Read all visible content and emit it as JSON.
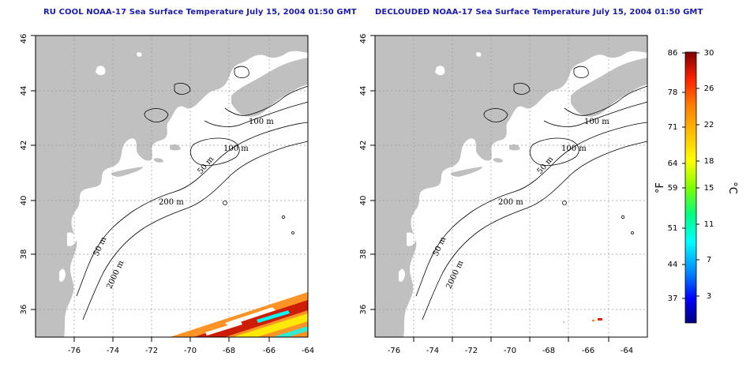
{
  "titles": {
    "left": "RU COOL NOAA-17 Sea Surface Temperature July 15, 2004 01:50 GMT",
    "right": "DECLOUDED NOAA-17 Sea Surface Temperature July 15, 2004 01:50 GMT"
  },
  "map": {
    "lon_range": [
      -77,
      -63
    ],
    "lat_range": [
      35,
      46
    ],
    "lon_ticks": [
      -76,
      -74,
      -72,
      -70,
      -68,
      -66,
      -64
    ],
    "lat_ticks": [
      36,
      38,
      40,
      42,
      44,
      46
    ],
    "grid": "dotted",
    "land_color": "#c0c0c0",
    "water_color": "#ffffff",
    "contour_labels": [
      "100 m",
      "100 m",
      "50 m",
      "200 m",
      "50 m",
      "2000 m"
    ]
  },
  "colorbar": {
    "fahrenheit_ticks": [
      "86",
      "78",
      "71",
      "64",
      "59",
      "51",
      "44",
      "37"
    ],
    "celsius_ticks": [
      "30",
      "26",
      "22",
      "18",
      "15",
      "11",
      "7",
      "3"
    ],
    "left_unit": "°F",
    "right_unit": "°C",
    "colors": [
      "#000080",
      "#0000ff",
      "#0080ff",
      "#00ffff",
      "#00ff80",
      "#80ff00",
      "#ffff00",
      "#ffbf00",
      "#ff8000",
      "#ff2000",
      "#c00000",
      "#800000"
    ]
  }
}
